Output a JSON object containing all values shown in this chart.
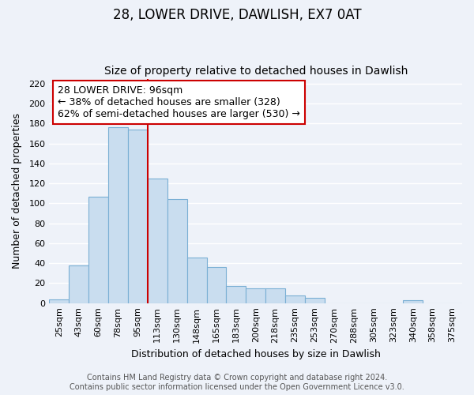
{
  "title": "28, LOWER DRIVE, DAWLISH, EX7 0AT",
  "subtitle": "Size of property relative to detached houses in Dawlish",
  "xlabel": "Distribution of detached houses by size in Dawlish",
  "ylabel": "Number of detached properties",
  "bar_color": "#c9ddef",
  "bar_edge_color": "#7aafd4",
  "categories": [
    "25sqm",
    "43sqm",
    "60sqm",
    "78sqm",
    "95sqm",
    "113sqm",
    "130sqm",
    "148sqm",
    "165sqm",
    "183sqm",
    "200sqm",
    "218sqm",
    "235sqm",
    "253sqm",
    "270sqm",
    "288sqm",
    "305sqm",
    "323sqm",
    "340sqm",
    "358sqm",
    "375sqm"
  ],
  "values": [
    4,
    38,
    107,
    176,
    174,
    125,
    104,
    46,
    36,
    17,
    15,
    15,
    8,
    5,
    0,
    0,
    0,
    0,
    3,
    0,
    0
  ],
  "ylim": [
    0,
    225
  ],
  "yticks": [
    0,
    20,
    40,
    60,
    80,
    100,
    120,
    140,
    160,
    180,
    200,
    220
  ],
  "vline_x_index": 4,
  "vline_color": "#cc0000",
  "annotation_title": "28 LOWER DRIVE: 96sqm",
  "annotation_line1": "← 38% of detached houses are smaller (328)",
  "annotation_line2": "62% of semi-detached houses are larger (530) →",
  "annotation_box_color": "#ffffff",
  "annotation_box_edge": "#cc0000",
  "footer1": "Contains HM Land Registry data © Crown copyright and database right 2024.",
  "footer2": "Contains public sector information licensed under the Open Government Licence v3.0.",
  "background_color": "#eef2f9",
  "grid_color": "#ffffff",
  "title_fontsize": 12,
  "subtitle_fontsize": 10,
  "axis_label_fontsize": 9,
  "tick_fontsize": 8,
  "annotation_fontsize": 9,
  "footer_fontsize": 7
}
